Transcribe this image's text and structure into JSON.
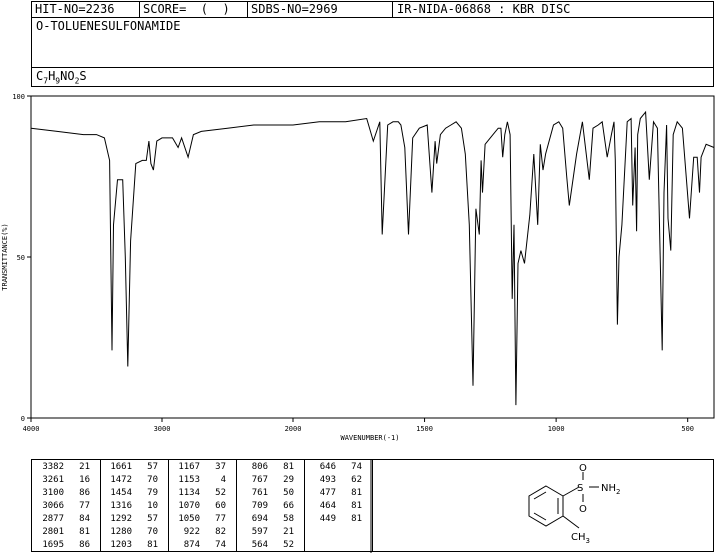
{
  "header": {
    "hit": "HIT-NO=2236",
    "score": "SCORE=  (  )",
    "sdbs": "SDBS-NO=2969",
    "ir": "IR-NIDA-06868 : KBR DISC"
  },
  "compound": {
    "name": "O-TOLUENESULFONAMIDE",
    "formula_parts": [
      "C",
      "7",
      "H",
      "9",
      "NO",
      "2",
      "S"
    ]
  },
  "chart_data": {
    "type": "line",
    "xlabel": "WAVENUMBER(-1)",
    "ylabel": "TRANSMITTANCE(%)",
    "xlim": [
      4000,
      400
    ],
    "ylim": [
      0,
      100
    ],
    "x_ticks": [
      "4000",
      "3000",
      "2000",
      "1500",
      "1000",
      "500"
    ],
    "y_ticks": [
      "0",
      "50",
      "100"
    ],
    "series": [
      {
        "x": [
          4000,
          3800,
          3600,
          3500,
          3440,
          3400,
          3382,
          3370,
          3340,
          3300,
          3280,
          3261,
          3240,
          3200,
          3150,
          3120,
          3100,
          3085,
          3066,
          3040,
          3000,
          2950,
          2920,
          2877,
          2850,
          2801,
          2760,
          2700,
          2500,
          2300,
          2100,
          2000,
          1900,
          1800,
          1720,
          1695,
          1670,
          1661,
          1640,
          1620,
          1600,
          1590,
          1575,
          1561,
          1545,
          1520,
          1490,
          1472,
          1460,
          1454,
          1440,
          1420,
          1400,
          1380,
          1360,
          1345,
          1330,
          1316,
          1305,
          1292,
          1285,
          1280,
          1270,
          1240,
          1220,
          1210,
          1203,
          1195,
          1185,
          1175,
          1167,
          1160,
          1153,
          1145,
          1134,
          1120,
          1100,
          1085,
          1070,
          1060,
          1050,
          1040,
          1010,
          990,
          975,
          960,
          950,
          922,
          900,
          874,
          860,
          840,
          825,
          806,
          790,
          780,
          775,
          767,
          761,
          750,
          730,
          715,
          709,
          700,
          694,
          690,
          680,
          660,
          646,
          630,
          615,
          597,
          590,
          580,
          575,
          564,
          555,
          540,
          520,
          493,
          477,
          464,
          455,
          449,
          430,
          400
        ],
        "y": [
          90,
          89,
          88,
          88,
          87,
          80,
          21,
          60,
          74,
          74,
          50,
          16,
          55,
          79,
          80,
          80,
          86,
          79,
          77,
          86,
          87,
          87,
          87,
          84,
          87,
          81,
          88,
          89,
          90,
          91,
          91,
          91,
          92,
          92,
          93,
          86,
          92,
          57,
          91,
          92,
          92,
          91,
          84,
          57,
          87,
          90,
          91,
          70,
          86,
          79,
          88,
          90,
          91,
          92,
          90,
          82,
          60,
          10,
          65,
          57,
          80,
          70,
          85,
          88,
          90,
          90,
          81,
          88,
          92,
          88,
          37,
          60,
          4,
          48,
          52,
          48,
          63,
          82,
          60,
          85,
          77,
          82,
          91,
          92,
          90,
          75,
          66,
          82,
          92,
          74,
          90,
          91,
          92,
          81,
          88,
          92,
          80,
          29,
          50,
          60,
          92,
          93,
          66,
          84,
          58,
          88,
          93,
          95,
          74,
          92,
          90,
          21,
          70,
          91,
          62,
          52,
          88,
          92,
          90,
          62,
          81,
          81,
          70,
          81,
          85,
          84
        ]
      }
    ],
    "peaks": [
      [
        "3382",
        "21"
      ],
      [
        "3261",
        "16"
      ],
      [
        "3100",
        "86"
      ],
      [
        "3066",
        "77"
      ],
      [
        "2877",
        "84"
      ],
      [
        "2801",
        "81"
      ],
      [
        "1695",
        "86"
      ],
      [
        "1661",
        "57"
      ],
      [
        "1472",
        "70"
      ],
      [
        "1454",
        "79"
      ],
      [
        "1316",
        "10"
      ],
      [
        "1292",
        "57"
      ],
      [
        "1280",
        "70"
      ],
      [
        "1203",
        "81"
      ],
      [
        "1167",
        "37"
      ],
      [
        "1153",
        "4"
      ],
      [
        "1134",
        "52"
      ],
      [
        "1070",
        "60"
      ],
      [
        "1050",
        "77"
      ],
      [
        "922",
        "82"
      ],
      [
        "874",
        "74"
      ],
      [
        "806",
        "81"
      ],
      [
        "767",
        "29"
      ],
      [
        "761",
        "50"
      ],
      [
        "709",
        "66"
      ],
      [
        "694",
        "58"
      ],
      [
        "597",
        "21"
      ],
      [
        "564",
        "52"
      ],
      [
        "646",
        "74"
      ],
      [
        "493",
        "62"
      ],
      [
        "477",
        "81"
      ],
      [
        "464",
        "81"
      ],
      [
        "449",
        "81"
      ]
    ]
  },
  "structure": {
    "atoms": {
      "o_top": "O",
      "s": "S",
      "o_bottom": "O",
      "nh2": "NH",
      "nh2_sub": "2",
      "ch3": "CH",
      "ch3_sub": "3"
    }
  }
}
